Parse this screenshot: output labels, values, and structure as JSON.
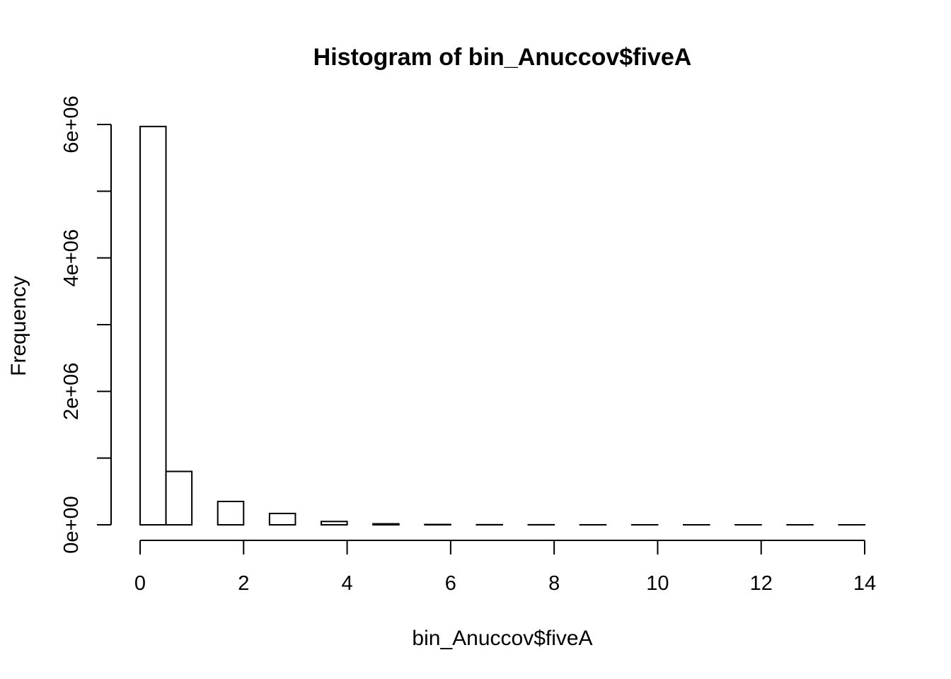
{
  "chart_data": {
    "type": "bar",
    "title": "Histogram of bin_Anuccov$fiveA",
    "xlabel": "bin_Anuccov$fiveA",
    "ylabel": "Frequency",
    "bin_width": 0.5,
    "bin_start": 0,
    "values": [
      5970000,
      800000,
      0,
      350000,
      0,
      170000,
      0,
      50000,
      0,
      15000,
      0,
      5000,
      0,
      2000,
      0,
      1000,
      0,
      500,
      0,
      300,
      0,
      200,
      0,
      100,
      0,
      50,
      0,
      30
    ],
    "xlim": [
      0,
      14
    ],
    "ylim": [
      0,
      6000000
    ],
    "x_ticks": [
      0,
      2,
      4,
      6,
      8,
      10,
      12,
      14
    ],
    "x_tick_labels": [
      "0",
      "2",
      "4",
      "6",
      "8",
      "10",
      "12",
      "14"
    ],
    "y_ticks": [
      0,
      1000000,
      2000000,
      3000000,
      4000000,
      5000000,
      6000000
    ],
    "y_tick_labels": [
      "0e+00",
      "",
      "2e+06",
      "",
      "4e+06",
      "",
      "6e+06"
    ],
    "bar_fill": "#ffffff",
    "bar_stroke": "#000000",
    "grid": false
  }
}
